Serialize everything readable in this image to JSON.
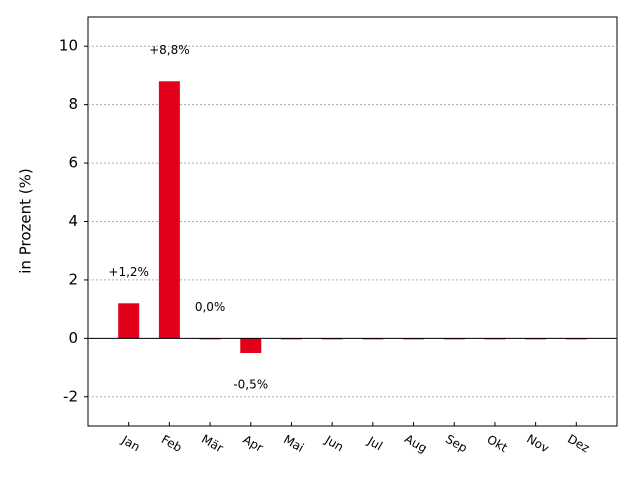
{
  "chart_data": {
    "type": "bar",
    "y_label": "in Prozent (%)",
    "categories": [
      "Jan",
      "Feb",
      "Mär",
      "Apr",
      "Mai",
      "Jun",
      "Jul",
      "Aug",
      "Sep",
      "Okt",
      "Nov",
      "Dez"
    ],
    "values": [
      1.2,
      8.8,
      0.0,
      -0.5,
      0,
      0,
      0,
      0,
      0,
      0,
      0,
      0
    ],
    "value_labels": [
      "+1,2%",
      "+8,8%",
      "0,0%",
      "-0,5%",
      null,
      null,
      null,
      null,
      null,
      null,
      null,
      null
    ],
    "color": "#e2001a",
    "ylim": [
      -3,
      11
    ],
    "yticks": [
      -2,
      0,
      2,
      4,
      6,
      8,
      10
    ],
    "grid": true
  }
}
